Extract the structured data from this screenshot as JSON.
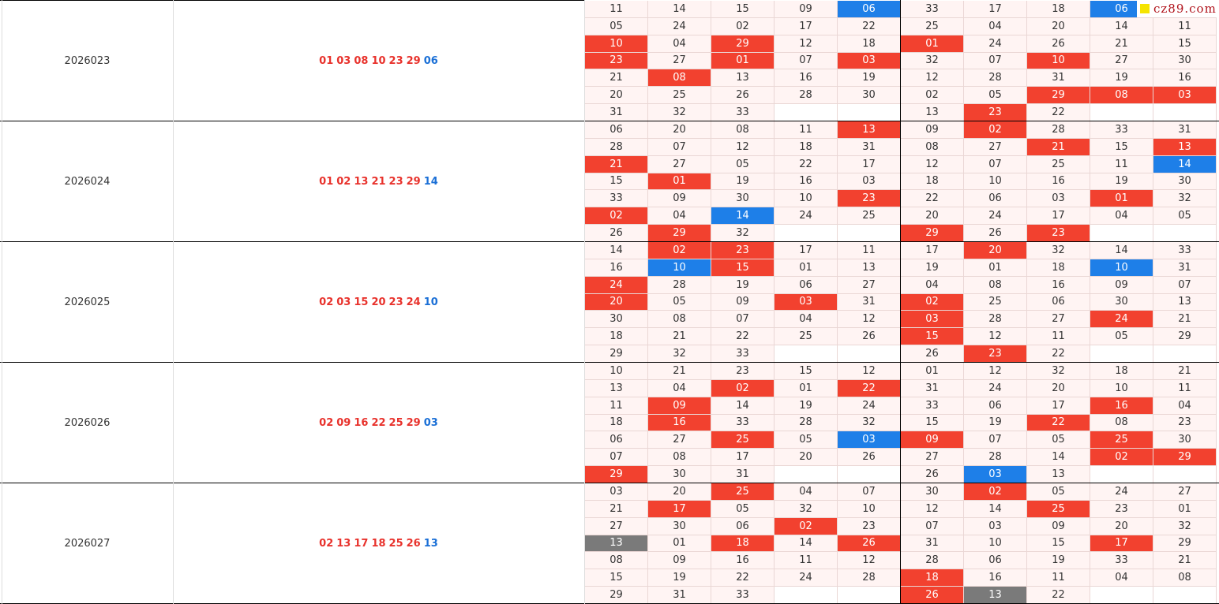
{
  "watermark": "cz89.com",
  "rows": [
    {
      "issue": "2026023",
      "red": [
        "01",
        "03",
        "08",
        "10",
        "23",
        "29"
      ],
      "blue": "06",
      "left": [
        [
          "11",
          "14",
          "15",
          "09",
          {
            "text": "06",
            "style": "blue"
          }
        ],
        [
          "05",
          "24",
          "02",
          "17",
          "22"
        ],
        [
          {
            "text": "10",
            "style": "red"
          },
          "04",
          {
            "text": "29",
            "style": "red"
          },
          "12",
          "18"
        ],
        [
          {
            "text": "23",
            "style": "red"
          },
          "27",
          {
            "text": "01",
            "style": "red"
          },
          "07",
          {
            "text": "03",
            "style": "red"
          }
        ],
        [
          "21",
          {
            "text": "08",
            "style": "red"
          },
          "13",
          "16",
          "19"
        ],
        [
          "20",
          "25",
          "26",
          "28",
          "30"
        ],
        [
          "31",
          "32",
          "33",
          null,
          null
        ]
      ],
      "right": [
        [
          "33",
          "17",
          "18",
          {
            "text": "06",
            "style": "blue"
          },
          null
        ],
        [
          "25",
          "04",
          "20",
          "14",
          "11"
        ],
        [
          {
            "text": "01",
            "style": "red"
          },
          "24",
          "26",
          "21",
          "15"
        ],
        [
          "32",
          "07",
          {
            "text": "10",
            "style": "red"
          },
          "27",
          "30"
        ],
        [
          "12",
          "28",
          "31",
          "19",
          "16"
        ],
        [
          "02",
          "05",
          {
            "text": "29",
            "style": "red"
          },
          {
            "text": "08",
            "style": "red"
          },
          {
            "text": "03",
            "style": "red"
          }
        ],
        [
          "13",
          {
            "text": "23",
            "style": "red"
          },
          "22",
          null,
          null
        ]
      ]
    },
    {
      "issue": "2026024",
      "red": [
        "01",
        "02",
        "13",
        "21",
        "23",
        "29"
      ],
      "blue": "14",
      "left": [
        [
          "06",
          "20",
          "08",
          "11",
          {
            "text": "13",
            "style": "red"
          }
        ],
        [
          "28",
          "07",
          "12",
          "18",
          "31"
        ],
        [
          {
            "text": "21",
            "style": "red"
          },
          "27",
          "05",
          "22",
          "17"
        ],
        [
          "15",
          {
            "text": "01",
            "style": "red"
          },
          "19",
          "16",
          "03"
        ],
        [
          "33",
          "09",
          "30",
          "10",
          {
            "text": "23",
            "style": "red"
          }
        ],
        [
          {
            "text": "02",
            "style": "red"
          },
          "04",
          {
            "text": "14",
            "style": "blue"
          },
          "24",
          "25"
        ],
        [
          "26",
          {
            "text": "29",
            "style": "red"
          },
          "32",
          null,
          null
        ]
      ],
      "right": [
        [
          "09",
          {
            "text": "02",
            "style": "red"
          },
          "28",
          "33",
          "31"
        ],
        [
          "08",
          "27",
          {
            "text": "21",
            "style": "red"
          },
          "15",
          {
            "text": "13",
            "style": "red"
          }
        ],
        [
          "12",
          "07",
          "25",
          "11",
          {
            "text": "14",
            "style": "blue"
          }
        ],
        [
          "18",
          "10",
          "16",
          "19",
          "30"
        ],
        [
          "22",
          "06",
          "03",
          {
            "text": "01",
            "style": "red"
          },
          "32"
        ],
        [
          "20",
          "24",
          "17",
          "04",
          "05"
        ],
        [
          {
            "text": "29",
            "style": "red"
          },
          "26",
          {
            "text": "23",
            "style": "red"
          },
          null,
          null
        ]
      ]
    },
    {
      "issue": "2026025",
      "red": [
        "02",
        "03",
        "15",
        "20",
        "23",
        "24"
      ],
      "blue": "10",
      "left": [
        [
          "14",
          {
            "text": "02",
            "style": "red"
          },
          {
            "text": "23",
            "style": "red"
          },
          "17",
          "11"
        ],
        [
          "16",
          {
            "text": "10",
            "style": "blue"
          },
          {
            "text": "15",
            "style": "red"
          },
          "01",
          "13"
        ],
        [
          {
            "text": "24",
            "style": "red"
          },
          "28",
          "19",
          "06",
          "27"
        ],
        [
          {
            "text": "20",
            "style": "red"
          },
          "05",
          "09",
          {
            "text": "03",
            "style": "red"
          },
          "31"
        ],
        [
          "30",
          "08",
          "07",
          "04",
          "12"
        ],
        [
          "18",
          "21",
          "22",
          "25",
          "26"
        ],
        [
          "29",
          "32",
          "33",
          null,
          null
        ]
      ],
      "right": [
        [
          "17",
          {
            "text": "20",
            "style": "red"
          },
          "32",
          "14",
          "33"
        ],
        [
          "19",
          "01",
          "18",
          {
            "text": "10",
            "style": "blue"
          },
          "31"
        ],
        [
          "04",
          "08",
          "16",
          "09",
          "07"
        ],
        [
          {
            "text": "02",
            "style": "red"
          },
          "25",
          "06",
          "30",
          "13"
        ],
        [
          {
            "text": "03",
            "style": "red"
          },
          "28",
          "27",
          {
            "text": "24",
            "style": "red"
          },
          "21"
        ],
        [
          {
            "text": "15",
            "style": "red"
          },
          "12",
          "11",
          "05",
          "29"
        ],
        [
          "26",
          {
            "text": "23",
            "style": "red"
          },
          "22",
          null,
          null
        ]
      ]
    },
    {
      "issue": "2026026",
      "red": [
        "02",
        "09",
        "16",
        "22",
        "25",
        "29"
      ],
      "blue": "03",
      "left": [
        [
          "10",
          "21",
          "23",
          "15",
          "12"
        ],
        [
          "13",
          "04",
          {
            "text": "02",
            "style": "red"
          },
          "01",
          {
            "text": "22",
            "style": "red"
          }
        ],
        [
          "11",
          {
            "text": "09",
            "style": "red"
          },
          "14",
          "19",
          "24"
        ],
        [
          "18",
          {
            "text": "16",
            "style": "red"
          },
          "33",
          "28",
          "32"
        ],
        [
          "06",
          "27",
          {
            "text": "25",
            "style": "red"
          },
          "05",
          {
            "text": "03",
            "style": "blue"
          }
        ],
        [
          "07",
          "08",
          "17",
          "20",
          "26"
        ],
        [
          {
            "text": "29",
            "style": "red"
          },
          "30",
          "31",
          null,
          null
        ]
      ],
      "right": [
        [
          "01",
          "12",
          "32",
          "18",
          "21"
        ],
        [
          "31",
          "24",
          "20",
          "10",
          "11"
        ],
        [
          "33",
          "06",
          "17",
          {
            "text": "16",
            "style": "red"
          },
          "04"
        ],
        [
          "15",
          "19",
          {
            "text": "22",
            "style": "red"
          },
          "08",
          "23"
        ],
        [
          {
            "text": "09",
            "style": "red"
          },
          "07",
          "05",
          {
            "text": "25",
            "style": "red"
          },
          "30"
        ],
        [
          "27",
          "28",
          "14",
          {
            "text": "02",
            "style": "red"
          },
          {
            "text": "29",
            "style": "red"
          }
        ],
        [
          "26",
          {
            "text": "03",
            "style": "blue"
          },
          "13",
          null,
          null
        ]
      ]
    },
    {
      "issue": "2026027",
      "red": [
        "02",
        "13",
        "17",
        "18",
        "25",
        "26"
      ],
      "blue": "13",
      "left": [
        [
          "03",
          "20",
          {
            "text": "25",
            "style": "red"
          },
          "04",
          "07"
        ],
        [
          "21",
          {
            "text": "17",
            "style": "red"
          },
          "05",
          "32",
          "10"
        ],
        [
          "27",
          "30",
          "06",
          {
            "text": "02",
            "style": "red"
          },
          "23"
        ],
        [
          {
            "text": "13",
            "style": "gray"
          },
          "01",
          {
            "text": "18",
            "style": "red"
          },
          "14",
          {
            "text": "26",
            "style": "red"
          }
        ],
        [
          "08",
          "09",
          "16",
          "11",
          "12"
        ],
        [
          "15",
          "19",
          "22",
          "24",
          "28"
        ],
        [
          "29",
          "31",
          "33",
          null,
          null
        ]
      ],
      "right": [
        [
          "30",
          {
            "text": "02",
            "style": "red"
          },
          "05",
          "24",
          "27"
        ],
        [
          "12",
          "14",
          {
            "text": "25",
            "style": "red"
          },
          "23",
          "01"
        ],
        [
          "07",
          "03",
          "09",
          "20",
          "32"
        ],
        [
          "31",
          "10",
          "15",
          {
            "text": "17",
            "style": "red"
          },
          "29"
        ],
        [
          "28",
          "06",
          "19",
          "33",
          "21"
        ],
        [
          {
            "text": "18",
            "style": "red"
          },
          "16",
          "11",
          "04",
          "08"
        ],
        [
          {
            "text": "26",
            "style": "red"
          },
          {
            "text": "13",
            "style": "gray"
          },
          "22",
          null,
          null
        ]
      ]
    }
  ]
}
